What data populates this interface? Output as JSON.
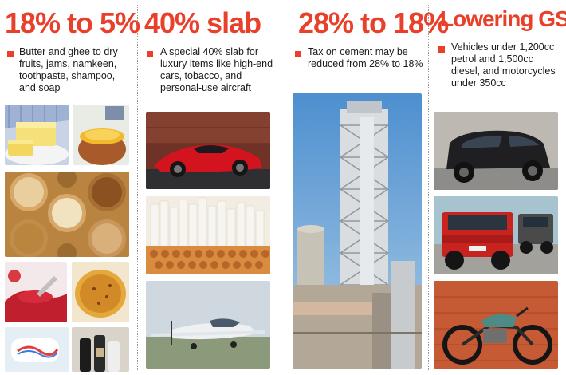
{
  "columns": [
    {
      "headline": "18% to 5%",
      "text": "Butter and ghee to dry fruits, jams, namkeen, toothpaste, shampoo, and soap",
      "photos": [
        "butter-and-ghee-photo",
        "dry-fruits-photo",
        "jam-photo",
        "namkeen-photo",
        "toothpaste-photo",
        "shampoo-and-soap-photo"
      ]
    },
    {
      "headline": "40% slab",
      "text": "A special 40% slab for luxury items like high-end cars, tobacco, and personal-use aircraft",
      "photos": [
        "luxury-car-photo",
        "cigarettes-photo",
        "aircraft-photo"
      ]
    },
    {
      "headline": "28% to 18%",
      "text": "Tax on cement may be reduced from 28% to 18%",
      "photos": [
        "cement-plant-photo"
      ]
    },
    {
      "headline": "Lowering GST",
      "text": "Vehicles under 1,200cc petrol and 1,500cc diesel, and motorcycles under 350cc",
      "photos": [
        "suv-photo",
        "jeeps-photo",
        "motorcycle-photo"
      ]
    }
  ],
  "colors": {
    "accent": "#e8402a",
    "text": "#1a1a1a",
    "divider": "#9a9a9a"
  }
}
